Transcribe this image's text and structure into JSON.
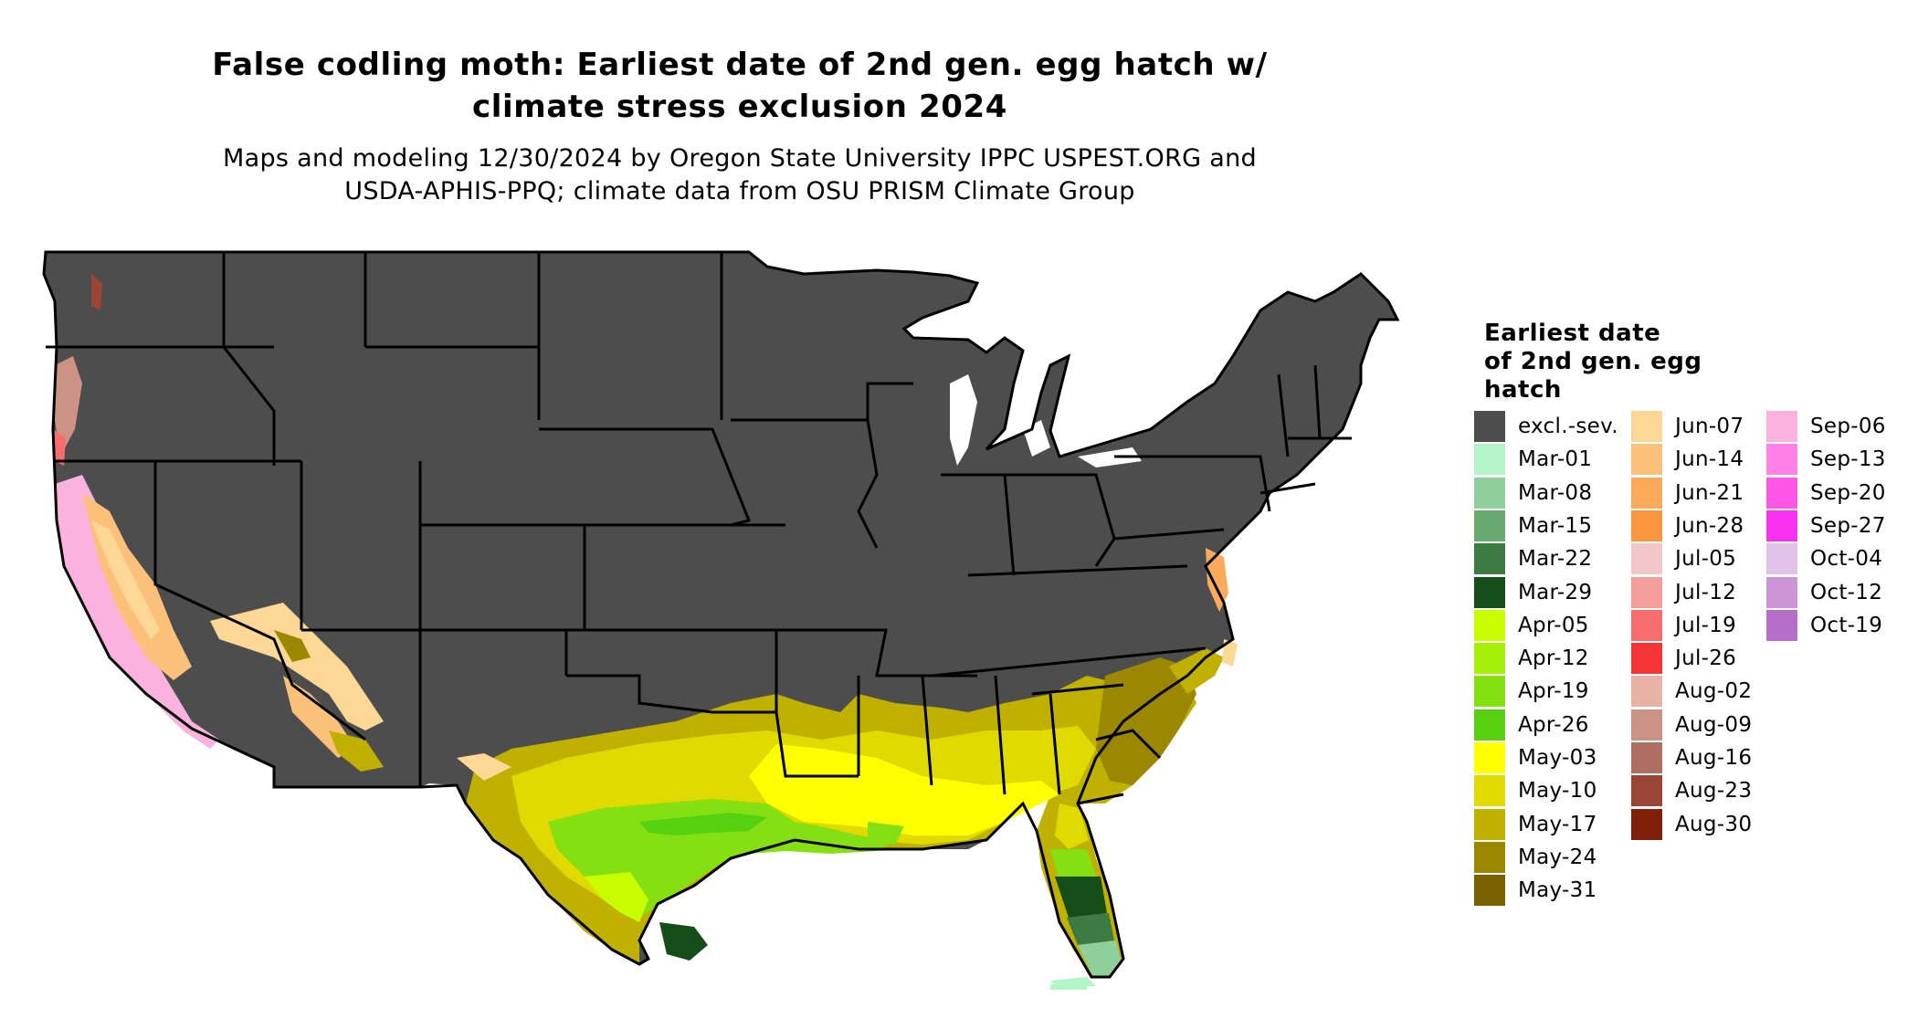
{
  "title_line1": "False codling moth: Earliest date of 2nd gen. egg hatch w/",
  "title_line2": "climate stress exclusion 2024",
  "subtitle_line1": "Maps and modeling 12/30/2024 by Oregon State University IPPC USPEST.ORG and",
  "subtitle_line2": "USDA-APHIS-PPQ; climate data from OSU PRISM Climate Group",
  "legend": {
    "title_line1": "Earliest date",
    "title_line2": "of 2nd gen. egg",
    "title_line3": "hatch",
    "items": [
      {
        "label": "excl.-sev.",
        "color": "#4d4d4d"
      },
      {
        "label": "Mar-01",
        "color": "#b3f5c6"
      },
      {
        "label": "Mar-08",
        "color": "#8ecf9c"
      },
      {
        "label": "Mar-15",
        "color": "#68a96f"
      },
      {
        "label": "Mar-22",
        "color": "#3d7b43"
      },
      {
        "label": "Mar-29",
        "color": "#154d18"
      },
      {
        "label": "Apr-05",
        "color": "#c8ff00"
      },
      {
        "label": "Apr-12",
        "color": "#a6ef0b"
      },
      {
        "label": "Apr-19",
        "color": "#84df13"
      },
      {
        "label": "Apr-26",
        "color": "#55d10f"
      },
      {
        "label": "May-03",
        "color": "#ffff00"
      },
      {
        "label": "May-10",
        "color": "#e0da00"
      },
      {
        "label": "May-17",
        "color": "#c0b000"
      },
      {
        "label": "May-24",
        "color": "#9c8800"
      },
      {
        "label": "May-31",
        "color": "#7a6100"
      },
      {
        "label": "Jun-07",
        "color": "#fcd796"
      },
      {
        "label": "Jun-14",
        "color": "#fbc07a"
      },
      {
        "label": "Jun-21",
        "color": "#fbaa5c"
      },
      {
        "label": "Jun-28",
        "color": "#fa963d"
      },
      {
        "label": "Jul-05",
        "color": "#f3c7c7"
      },
      {
        "label": "Jul-12",
        "color": "#f59d9d"
      },
      {
        "label": "Jul-19",
        "color": "#f56d6d"
      },
      {
        "label": "Jul-26",
        "color": "#f53535"
      },
      {
        "label": "Aug-02",
        "color": "#e8b3a7"
      },
      {
        "label": "Aug-09",
        "color": "#cc9286"
      },
      {
        "label": "Aug-16",
        "color": "#b06e63"
      },
      {
        "label": "Aug-23",
        "color": "#9a4535"
      },
      {
        "label": "Aug-30",
        "color": "#7f1f0a"
      },
      {
        "label": "Sep-06",
        "color": "#fab3de"
      },
      {
        "label": "Sep-13",
        "color": "#ff80e6"
      },
      {
        "label": "Sep-20",
        "color": "#fb56e6"
      },
      {
        "label": "Sep-27",
        "color": "#f930f0"
      },
      {
        "label": "Oct-04",
        "color": "#e2c1e8"
      },
      {
        "label": "Oct-12",
        "color": "#cc96d6"
      },
      {
        "label": "Oct-19",
        "color": "#b66fc8"
      }
    ]
  }
}
